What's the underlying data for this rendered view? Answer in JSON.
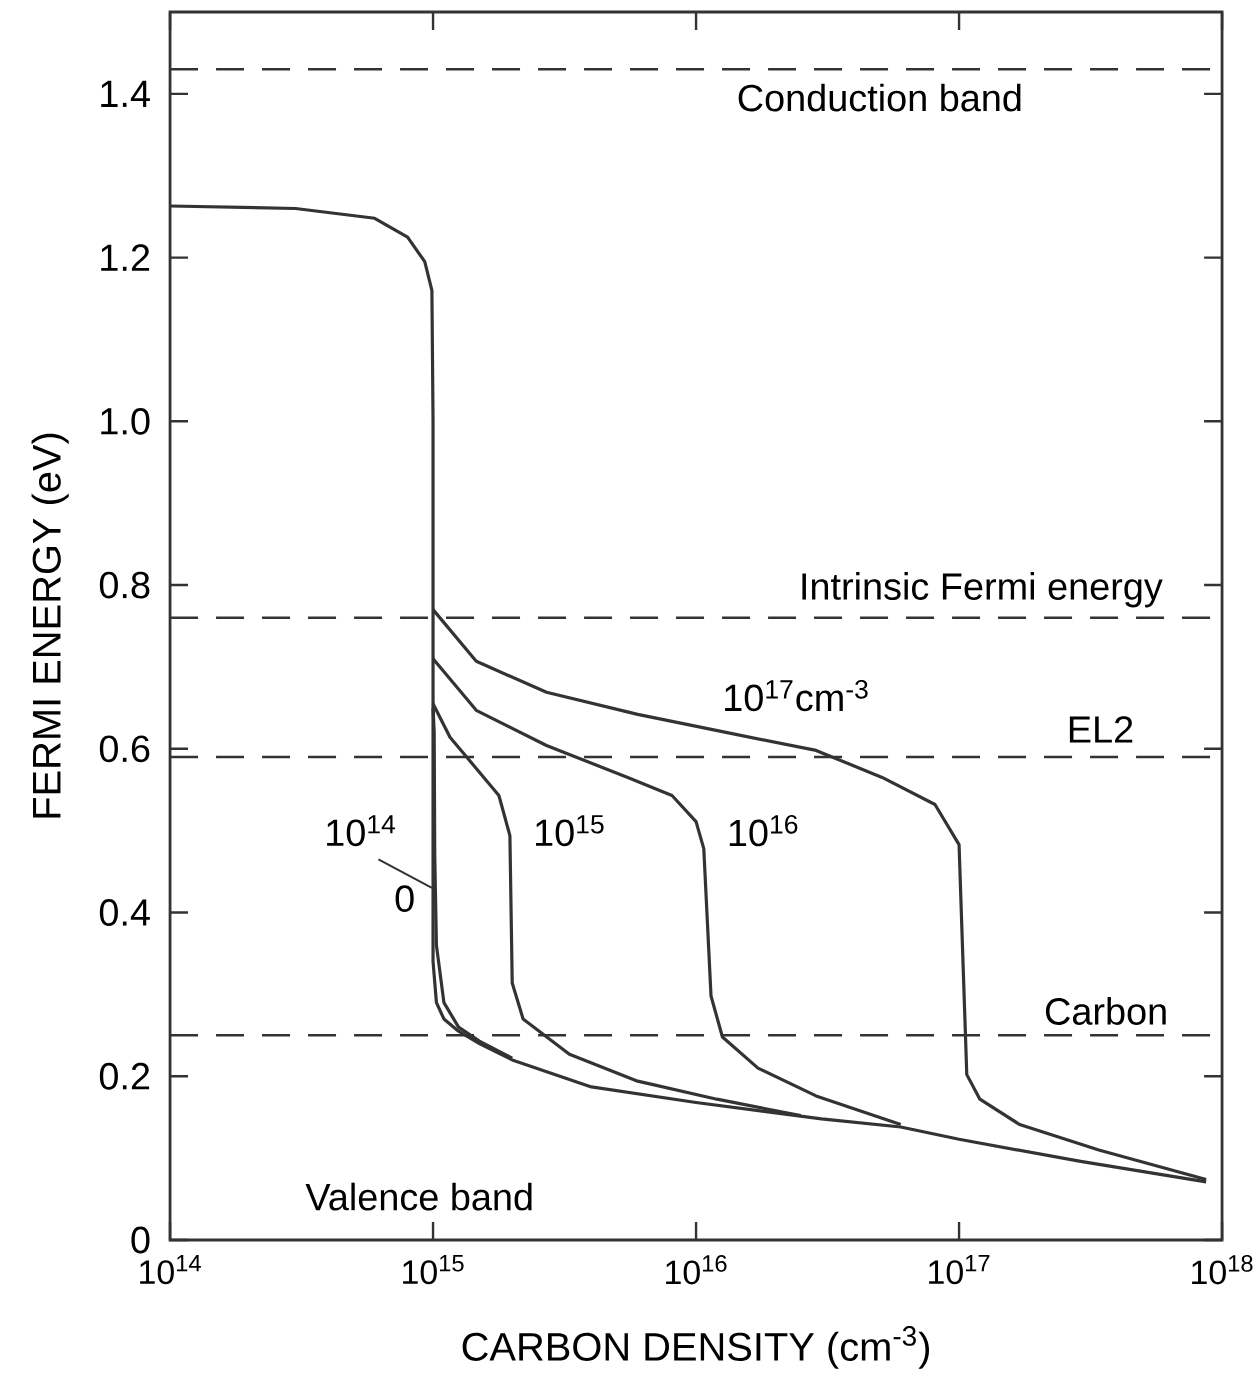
{
  "chart_data": {
    "type": "line",
    "xlabel": "CARBON DENSITY (cm$^{-3}$)",
    "ylabel": "FERMI ENERGY (eV)",
    "log": "x",
    "xlim": [
      100000000000000.0,
      1e+18
    ],
    "ylim": [
      0,
      1.5
    ],
    "xticks": [
      {
        "value": 100000000000000.0,
        "label": "10$^{14}$"
      },
      {
        "value": 1000000000000000.0,
        "label": "10$^{15}$"
      },
      {
        "value": 1e+16,
        "label": "10$^{16}$"
      },
      {
        "value": 1e+17,
        "label": "10$^{17}$"
      },
      {
        "value": 1e+18,
        "label": "10$^{18}$"
      }
    ],
    "yticks": [
      0,
      0.2,
      0.4,
      0.6,
      0.8,
      {
        "value": 1,
        "label": "1.0"
      },
      1.2,
      1.4
    ],
    "series": [
      {
        "name": "0",
        "color": "#333333",
        "x": [
          100000000000000.0,
          300000000000000.0,
          600000000000000.0,
          800000000000000.0,
          930000000000000.0,
          990000000000000.0,
          1000000000000000.0,
          1000000000000000.0,
          1030000000000000.0,
          1100000000000000.0,
          1250000000000000.0,
          1500000000000000.0,
          2000000000000000.0,
          4000000000000000.0,
          1e+16,
          3e+16,
          6e+16,
          1e+17,
          2.9e+17,
          8.7e+17
        ],
        "values": [
          1.263,
          1.26,
          1.248,
          1.225,
          1.195,
          1.16,
          1.0,
          0.34,
          0.29,
          0.27,
          0.255,
          0.24,
          0.22,
          0.187,
          0.168,
          0.148,
          0.138,
          0.123,
          0.096,
          0.071
        ]
      },
      {
        "name": "10$^{14}$",
        "color": "#333333",
        "x": [
          1000000000000000.0,
          1010000000000000.0,
          1015000000000000.0,
          1030000000000000.0,
          1100000000000000.0,
          1250000000000000.0,
          1500000000000000.0,
          2000000000000000.0
        ],
        "values": [
          0.65,
          0.62,
          0.47,
          0.36,
          0.29,
          0.26,
          0.243,
          0.222
        ]
      },
      {
        "name": "10$^{15}$",
        "color": "#333333",
        "x": [
          1000000000000000.0,
          1160000000000000.0,
          1460000000000000.0,
          1780000000000000.0,
          1960000000000000.0,
          2000000000000000.0,
          2200000000000000.0,
          3300000000000000.0,
          6000000000000000.0,
          1.2e+16,
          2.5e+16
        ],
        "values": [
          0.655,
          0.614,
          0.576,
          0.543,
          0.494,
          0.314,
          0.27,
          0.227,
          0.194,
          0.172,
          0.152
        ]
      },
      {
        "name": "10$^{16}$",
        "color": "#333333",
        "x": [
          1000000000000000.0,
          1460000000000000.0,
          2700000000000000.0,
          5500000000000000.0,
          8100000000000000.0,
          1e+16,
          1.07e+16,
          1.14e+16,
          1.26e+16,
          1.72e+16,
          2.86e+16,
          6e+16
        ],
        "values": [
          0.71,
          0.647,
          0.604,
          0.565,
          0.543,
          0.511,
          0.478,
          0.298,
          0.248,
          0.21,
          0.176,
          0.141
        ]
      },
      {
        "name": "10$^{17}$cm$^{-3}$",
        "color": "#333333",
        "x": [
          1000000000000000.0,
          1460000000000000.0,
          2700000000000000.0,
          6000000000000000.0,
          1.3e+16,
          2.86e+16,
          5.1e+16,
          8.1e+16,
          1e+17,
          1.07e+17,
          1.2e+17,
          1.7e+17,
          3.4e+17,
          8.7e+17
        ],
        "values": [
          0.77,
          0.707,
          0.669,
          0.642,
          0.62,
          0.598,
          0.565,
          0.532,
          0.483,
          0.202,
          0.172,
          0.141,
          0.11,
          0.074
        ]
      }
    ],
    "ref_lines": [
      {
        "axis": "y",
        "value": 1.43,
        "label": "Conduction band",
        "line_style": "dashed",
        "color": "#333333"
      },
      {
        "axis": "y",
        "value": 0.76,
        "label": "Intrinsic Fermi energy",
        "line_style": "dashed",
        "color": "#333333"
      },
      {
        "axis": "y",
        "value": 0.59,
        "label": "EL2",
        "line_style": "dashed",
        "color": "#333333"
      },
      {
        "axis": "y",
        "value": 0.25,
        "label": "Carbon",
        "line_style": "dashed",
        "color": "#333333"
      }
    ],
    "annotations": [
      "Valence band"
    ]
  }
}
